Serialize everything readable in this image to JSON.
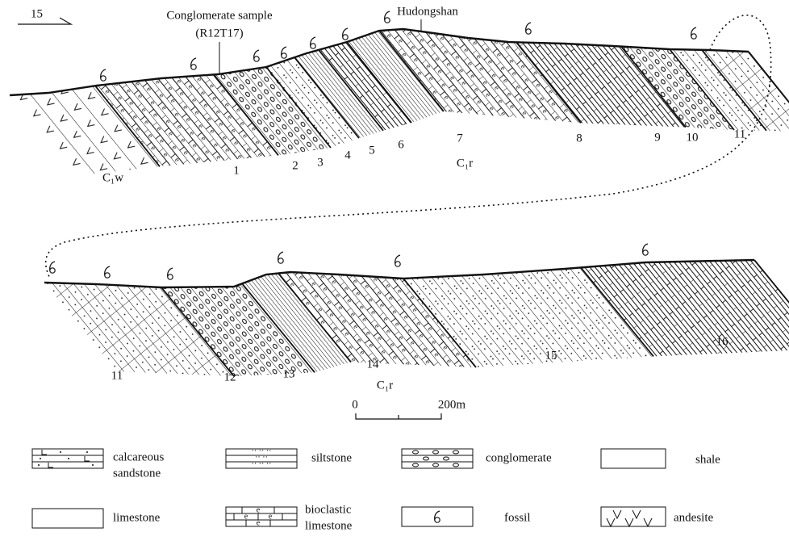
{
  "direction_label": "15",
  "upper_section": {
    "sample_label": [
      "Conglomerate sample",
      "(R12T17)"
    ],
    "peak_label": "Hudongshan",
    "units": [
      "1",
      "2",
      "3",
      "4",
      "5",
      "6",
      "7",
      "8",
      "9",
      "10",
      "11"
    ],
    "formation_lower": "C₁w",
    "formation_upper": "C₁r"
  },
  "lower_section": {
    "units": [
      "11",
      "12",
      "13",
      "14",
      "15",
      "16"
    ],
    "formation": "C₁r"
  },
  "scale": {
    "start": "0",
    "end": "200m"
  },
  "legend": [
    {
      "label": [
        "calcareous",
        "sandstone"
      ]
    },
    {
      "label": [
        "siltstone"
      ]
    },
    {
      "label": [
        "conglomerate"
      ]
    },
    {
      "label": [
        "shale"
      ]
    },
    {
      "label": [
        "limestone"
      ]
    },
    {
      "label": [
        "bioclastic",
        "limestone"
      ]
    },
    {
      "label": [
        "fossil"
      ]
    },
    {
      "label": [
        "andesite"
      ]
    }
  ]
}
